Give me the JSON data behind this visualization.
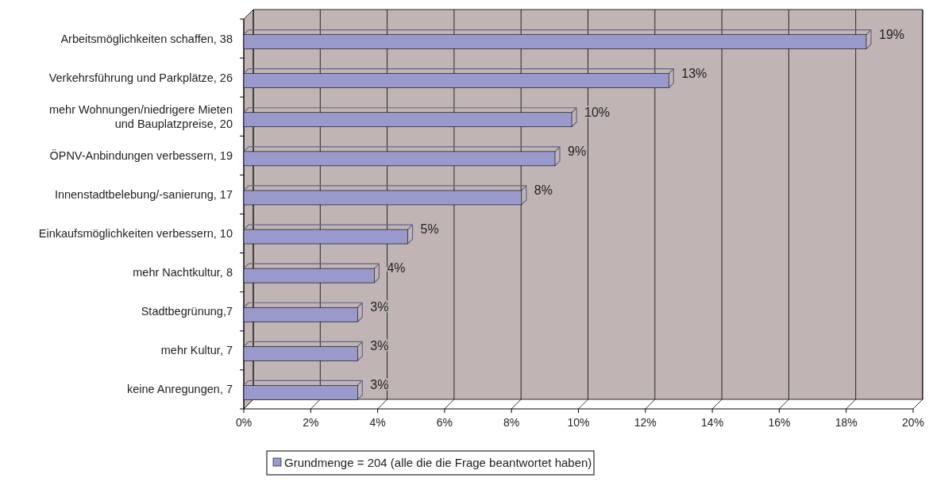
{
  "chart_data": {
    "type": "bar",
    "orientation": "horizontal",
    "categories": [
      "Arbeitsmöglichkeiten schaffen, 38",
      "Verkehrsführung und Parkplätze, 26",
      "mehr Wohnungen/niedrigere Mieten und Bauplatzpreise, 20",
      "ÖPNV-Anbindungen verbessern, 19",
      "Innenstadtbelebung/-sanierung, 17",
      "Einkaufsmöglichkeiten verbessern, 10",
      "mehr Nachtkultur, 8",
      "Stadtbegrünung,7",
      "mehr Kultur, 7",
      "keine Anregungen, 7"
    ],
    "series": [
      {
        "name": "Grundmenge = 204 (alle die die Frage beantwortet haben)",
        "color": "#9999cc",
        "values": [
          18.6,
          12.7,
          9.8,
          9.3,
          8.3,
          4.9,
          3.9,
          3.4,
          3.4,
          3.4
        ],
        "value_labels": [
          "19%",
          "13%",
          "10%",
          "9%",
          "8%",
          "5%",
          "4%",
          "3%",
          "3%",
          "3%"
        ]
      }
    ],
    "xlim": [
      0,
      20
    ],
    "xticks": [
      {
        "value": 0,
        "label": "0%"
      },
      {
        "value": 2,
        "label": "2%"
      },
      {
        "value": 4,
        "label": "4%"
      },
      {
        "value": 6,
        "label": "6%"
      },
      {
        "value": 8,
        "label": "8%"
      },
      {
        "value": 10,
        "label": "10%"
      },
      {
        "value": 12,
        "label": "12%"
      },
      {
        "value": 14,
        "label": "14%"
      },
      {
        "value": 16,
        "label": "16%"
      },
      {
        "value": 18,
        "label": "18%"
      },
      {
        "value": 20,
        "label": "20%"
      }
    ],
    "grid": "x",
    "legend": "bottom"
  }
}
